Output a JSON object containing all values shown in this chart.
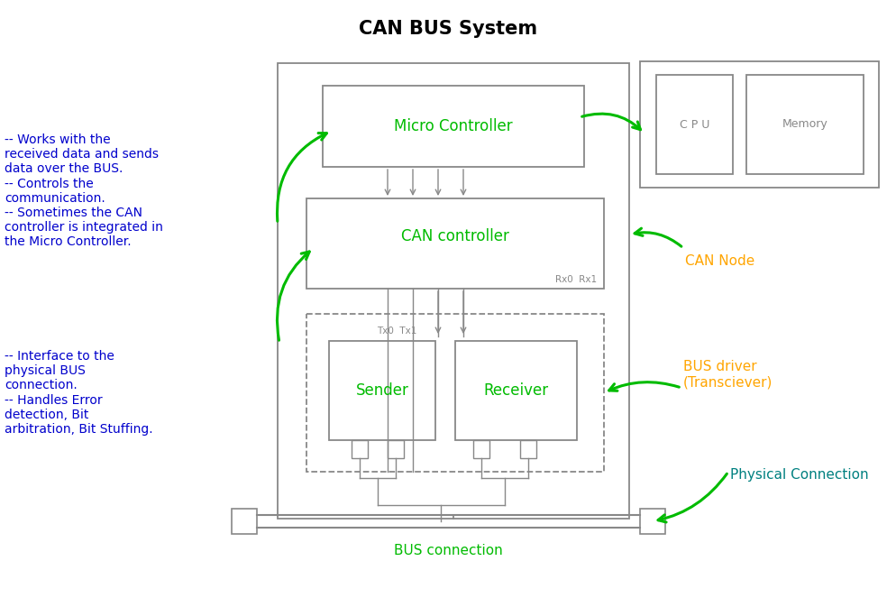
{
  "title": "CAN BUS System",
  "title_fontsize": 15,
  "title_color": "#000000",
  "bg_color": "#ffffff",
  "box_edge_color": "#888888",
  "green_color": "#00bb00",
  "orange_color": "#FFA500",
  "teal_color": "#008080",
  "blue_color": "#0000CC",
  "left_text1": "-- Works with the\nreceived data and sends\ndata over the BUS.\n-- Controls the\ncommunication.\n-- Sometimes the CAN\ncontroller is integrated in\nthe Micro Controller.",
  "left_text2": "-- Interface to the\nphysical BUS\nconnection.\n-- Handles Error\ndetection, Bit\narbitration, Bit Stuffing.",
  "label_micro": "Micro Controller",
  "label_can": "CAN controller",
  "label_sender": "Sender",
  "label_receiver": "Receiver",
  "label_cpu": "C P U",
  "label_memory": "Memory",
  "label_can_node": "CAN Node",
  "label_bus_driver": "BUS driver\n(Transciever)",
  "label_physical": "Physical Connection",
  "label_bus_connection": "BUS connection",
  "label_rx": "Rx0  Rx1",
  "label_tx": "Tx0  Tx1"
}
